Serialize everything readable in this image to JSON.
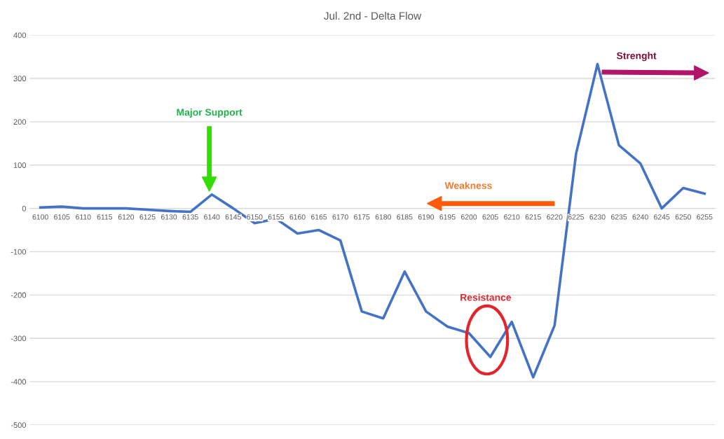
{
  "chart_data": {
    "type": "line",
    "title": "Jul. 2nd - Delta Flow",
    "categories": [
      "6100",
      "6105",
      "6110",
      "6115",
      "6120",
      "6125",
      "6130",
      "6135",
      "6140",
      "6145",
      "6150",
      "6155",
      "6160",
      "6165",
      "6170",
      "6175",
      "6180",
      "6185",
      "6190",
      "6195",
      "6200",
      "6205",
      "6210",
      "6215",
      "6220",
      "6225",
      "6230",
      "6235",
      "6240",
      "6245",
      "6250",
      "6255"
    ],
    "series": [
      {
        "color": "#4472c4",
        "values": [
          2,
          4,
          0,
          0,
          0,
          -3,
          -6,
          -8,
          32,
          0,
          -34,
          -24,
          -58,
          -50,
          -74,
          -238,
          -254,
          -146,
          -238,
          -273,
          -288,
          -343,
          -262,
          -390,
          -270,
          126,
          333,
          146,
          104,
          0,
          47,
          34
        ]
      }
    ],
    "ylim": [
      -500,
      400
    ],
    "yticks": [
      -500,
      -400,
      -300,
      -200,
      -100,
      0,
      100,
      200,
      300,
      400
    ],
    "grid": "y",
    "legend": false,
    "marker": "none",
    "line_style": "solid",
    "annotations": [
      "Major Support",
      "Weakness",
      "Strenght",
      "Resistance"
    ]
  }
}
